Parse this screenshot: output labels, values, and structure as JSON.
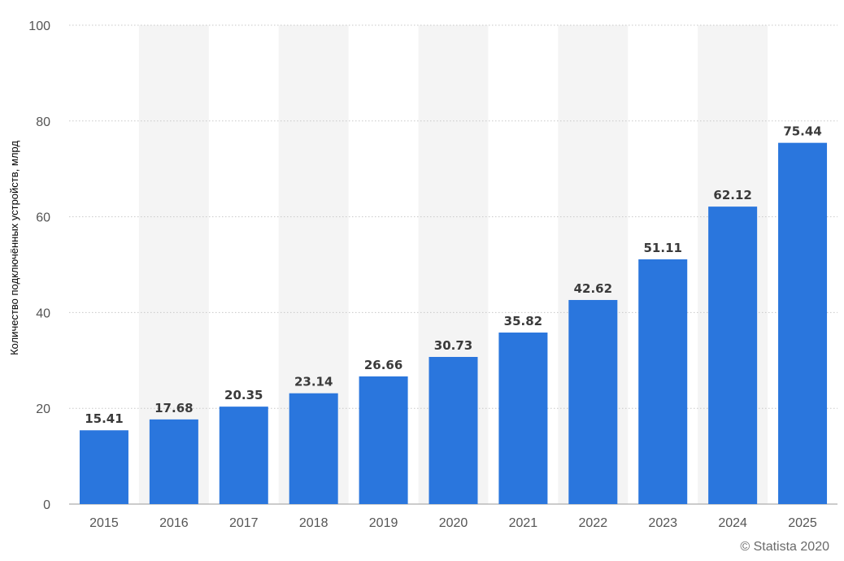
{
  "chart_data": {
    "type": "bar",
    "categories": [
      "2015",
      "2016",
      "2017",
      "2018",
      "2019",
      "2020",
      "2021",
      "2022",
      "2023",
      "2024",
      "2025"
    ],
    "values": [
      15.41,
      17.68,
      20.35,
      23.14,
      26.66,
      30.73,
      35.82,
      42.62,
      51.11,
      62.12,
      75.44
    ],
    "value_labels": [
      "15.41",
      "17.68",
      "20.35",
      "23.14",
      "26.66",
      "30.73",
      "35.82",
      "42.62",
      "51.11",
      "62.12",
      "75.44"
    ],
    "title": "",
    "xlabel": "",
    "ylabel": "Количество подключённых устройств, млрд",
    "ylim": [
      0,
      100
    ],
    "yticks": [
      "0",
      "20",
      "40",
      "60",
      "80",
      "100"
    ],
    "grid": true,
    "legend": "none",
    "colors": {
      "bar": "#2a76dd",
      "band": "#f4f4f4",
      "grid": "#c8c8c8"
    }
  },
  "footer": {
    "credit": "© Statista 2020"
  }
}
